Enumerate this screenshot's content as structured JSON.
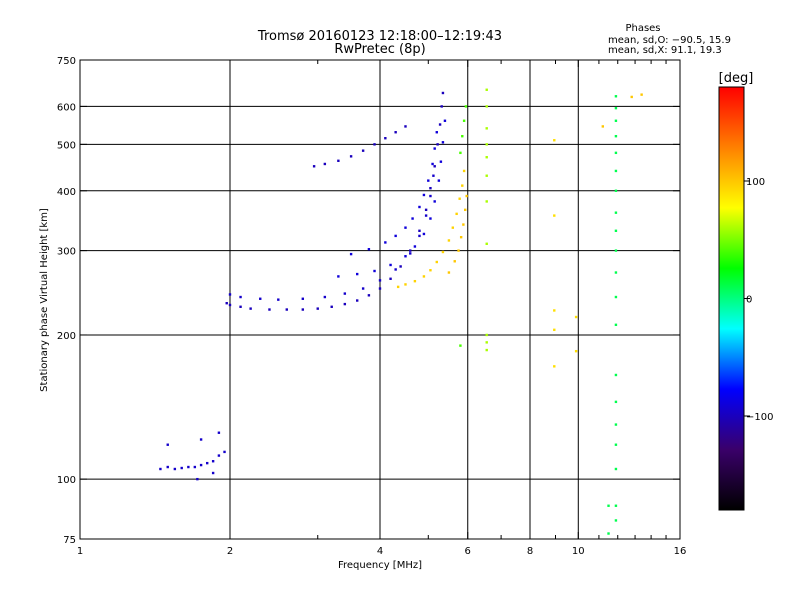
{
  "chart_data": {
    "type": "scatter",
    "title": "Tromsø 20160123 12:18:00–12:19:43",
    "subtitle": "RwPretec (8p)",
    "xlabel": "Frequency [MHz]",
    "ylabel": "Stationary phase Virtual Height [km]",
    "x_scale": "log",
    "y_scale": "log",
    "xlim": [
      1,
      16
    ],
    "ylim": [
      75,
      750
    ],
    "x_ticks": [
      1,
      2,
      4,
      6,
      8,
      10,
      16
    ],
    "x_tick_labels": [
      "1",
      "2",
      "4",
      "6",
      "8",
      "10",
      "16"
    ],
    "x_minor_ticks": [
      3,
      5,
      7,
      9,
      11,
      12,
      13,
      14,
      15
    ],
    "x_gridlines": [
      2,
      4,
      6,
      8,
      10
    ],
    "y_ticks": [
      75,
      100,
      200,
      300,
      400,
      500,
      600,
      750
    ],
    "y_tick_labels": [
      "75",
      "100",
      "200",
      "300",
      "400",
      "500",
      "600",
      "750"
    ],
    "y_gridlines": [
      100,
      200,
      300,
      400,
      500,
      600
    ],
    "grid": true,
    "phase_stats": {
      "heading": "Phases",
      "line1": "mean, sd,O: −90.5, 15.9",
      "line2": "mean, sd,X:  91.1, 19.3"
    },
    "colorbar": {
      "label": "[deg]",
      "range": [
        -180,
        180
      ],
      "ticks": [
        100,
        0,
        -100
      ],
      "tick_labels": [
        "100",
        "0",
        "−100"
      ],
      "colormap": [
        "#000000",
        "#3a006a",
        "#0000ff",
        "#00ffff",
        "#00ff00",
        "#ffff00",
        "#ff8000",
        "#ff0000"
      ]
    },
    "series": [
      {
        "trace": "low-layer-echoes",
        "phase_deg": -95,
        "points": [
          [
            1.45,
            105
          ],
          [
            1.5,
            106
          ],
          [
            1.55,
            105
          ],
          [
            1.6,
            105.5
          ],
          [
            1.65,
            106
          ],
          [
            1.7,
            106
          ],
          [
            1.75,
            107
          ],
          [
            1.8,
            108
          ],
          [
            1.85,
            109
          ],
          [
            1.9,
            112
          ],
          [
            1.5,
            118
          ],
          [
            1.75,
            121
          ],
          [
            1.9,
            125
          ],
          [
            1.95,
            114
          ],
          [
            1.85,
            103
          ],
          [
            1.72,
            100
          ]
        ]
      },
      {
        "trace": "o-mode-lower",
        "phase_deg": -100,
        "points": [
          [
            1.97,
            233
          ],
          [
            2.0,
            231
          ],
          [
            2.1,
            229
          ],
          [
            2.2,
            227
          ],
          [
            2.4,
            226
          ],
          [
            2.6,
            226
          ],
          [
            2.8,
            226
          ],
          [
            3.0,
            227
          ],
          [
            3.2,
            229
          ],
          [
            3.4,
            232
          ],
          [
            3.6,
            236
          ],
          [
            3.8,
            242
          ],
          [
            4.0,
            250
          ],
          [
            4.2,
            262
          ],
          [
            4.4,
            278
          ],
          [
            4.6,
            300
          ],
          [
            4.8,
            330
          ],
          [
            4.95,
            365
          ],
          [
            5.05,
            405
          ],
          [
            5.15,
            450
          ],
          [
            5.22,
            500
          ],
          [
            5.28,
            550
          ],
          [
            5.32,
            600
          ],
          [
            5.35,
            640
          ]
        ]
      },
      {
        "trace": "o-mode-upper",
        "phase_deg": -95,
        "points": [
          [
            2.0,
            243
          ],
          [
            2.1,
            240
          ],
          [
            2.3,
            238
          ],
          [
            2.5,
            237
          ],
          [
            2.8,
            238
          ],
          [
            3.1,
            240
          ],
          [
            3.4,
            244
          ],
          [
            3.7,
            250
          ],
          [
            4.0,
            260
          ],
          [
            4.3,
            274
          ],
          [
            4.6,
            296
          ],
          [
            4.8,
            322
          ],
          [
            4.95,
            355
          ],
          [
            5.05,
            390
          ],
          [
            5.12,
            430
          ]
        ]
      },
      {
        "trace": "o-mode-second",
        "phase_deg": -90,
        "points": [
          [
            3.3,
            265
          ],
          [
            3.6,
            268
          ],
          [
            3.9,
            272
          ],
          [
            4.2,
            280
          ],
          [
            4.5,
            292
          ],
          [
            4.7,
            306
          ],
          [
            4.9,
            325
          ],
          [
            5.05,
            350
          ],
          [
            5.15,
            380
          ],
          [
            5.25,
            420
          ],
          [
            5.3,
            460
          ],
          [
            5.35,
            505
          ],
          [
            5.4,
            560
          ]
        ]
      },
      {
        "trace": "o-mode-third",
        "phase_deg": -90,
        "points": [
          [
            3.5,
            295
          ],
          [
            3.8,
            302
          ],
          [
            4.1,
            312
          ],
          [
            4.3,
            322
          ],
          [
            4.5,
            335
          ],
          [
            4.65,
            350
          ],
          [
            4.8,
            370
          ],
          [
            4.9,
            392
          ],
          [
            5.0,
            420
          ],
          [
            5.1,
            455
          ],
          [
            5.15,
            490
          ],
          [
            5.2,
            530
          ]
        ]
      },
      {
        "trace": "oblique-upper",
        "phase_deg": -100,
        "points": [
          [
            2.95,
            450
          ],
          [
            3.1,
            455
          ],
          [
            3.3,
            462
          ],
          [
            3.5,
            472
          ],
          [
            3.7,
            485
          ],
          [
            3.9,
            500
          ],
          [
            4.1,
            515
          ],
          [
            4.3,
            530
          ],
          [
            4.5,
            545
          ]
        ]
      },
      {
        "trace": "x-mode",
        "phase_deg": 95,
        "points": [
          [
            4.35,
            252
          ],
          [
            4.5,
            255
          ],
          [
            4.7,
            259
          ],
          [
            4.9,
            265
          ],
          [
            5.05,
            273
          ],
          [
            5.2,
            284
          ],
          [
            5.35,
            298
          ],
          [
            5.5,
            315
          ],
          [
            5.6,
            335
          ],
          [
            5.7,
            358
          ],
          [
            5.78,
            385
          ],
          [
            5.85,
            410
          ],
          [
            5.9,
            440
          ]
        ]
      },
      {
        "trace": "x-mode-upper",
        "phase_deg": 100,
        "points": [
          [
            5.5,
            270
          ],
          [
            5.65,
            285
          ],
          [
            5.75,
            300
          ],
          [
            5.82,
            320
          ],
          [
            5.88,
            340
          ],
          [
            5.93,
            365
          ],
          [
            5.97,
            390
          ]
        ]
      },
      {
        "trace": "scattered-mid",
        "phase_deg": 40,
        "points": [
          [
            5.8,
            480
          ],
          [
            5.85,
            520
          ],
          [
            5.9,
            560
          ],
          [
            5.95,
            600
          ],
          [
            5.8,
            190
          ]
        ]
      },
      {
        "trace": "vertical-6.5MHz",
        "phase_deg": 60,
        "points": [
          [
            6.55,
            650
          ],
          [
            6.55,
            600
          ],
          [
            6.55,
            540
          ],
          [
            6.55,
            500
          ],
          [
            6.55,
            470
          ],
          [
            6.55,
            430
          ],
          [
            6.55,
            380
          ],
          [
            6.55,
            310
          ],
          [
            6.55,
            200
          ],
          [
            6.55,
            193
          ],
          [
            6.55,
            186
          ]
        ]
      },
      {
        "trace": "vertical-9MHz",
        "phase_deg": 90,
        "points": [
          [
            8.95,
            510
          ],
          [
            8.95,
            355
          ],
          [
            8.95,
            225
          ],
          [
            8.95,
            205
          ],
          [
            8.95,
            172
          ],
          [
            9.9,
            218
          ],
          [
            9.9,
            185
          ]
        ]
      },
      {
        "trace": "vertical-12MHz",
        "phase_deg": 10,
        "points": [
          [
            11.9,
            630
          ],
          [
            11.9,
            595
          ],
          [
            11.9,
            560
          ],
          [
            11.9,
            520
          ],
          [
            11.9,
            480
          ],
          [
            11.9,
            440
          ],
          [
            11.9,
            400
          ],
          [
            11.9,
            360
          ],
          [
            11.9,
            330
          ],
          [
            11.9,
            300
          ],
          [
            11.9,
            270
          ],
          [
            11.9,
            240
          ],
          [
            11.9,
            210
          ],
          [
            11.9,
            165
          ],
          [
            11.9,
            145
          ],
          [
            11.9,
            130
          ],
          [
            11.9,
            118
          ],
          [
            11.9,
            105
          ],
          [
            11.9,
            88
          ],
          [
            11.9,
            82
          ],
          [
            11.5,
            88
          ],
          [
            11.5,
            77
          ]
        ]
      },
      {
        "trace": "scattered-high",
        "phase_deg": 100,
        "points": [
          [
            12.8,
            628
          ],
          [
            13.4,
            635
          ],
          [
            11.2,
            545
          ]
        ]
      }
    ]
  }
}
